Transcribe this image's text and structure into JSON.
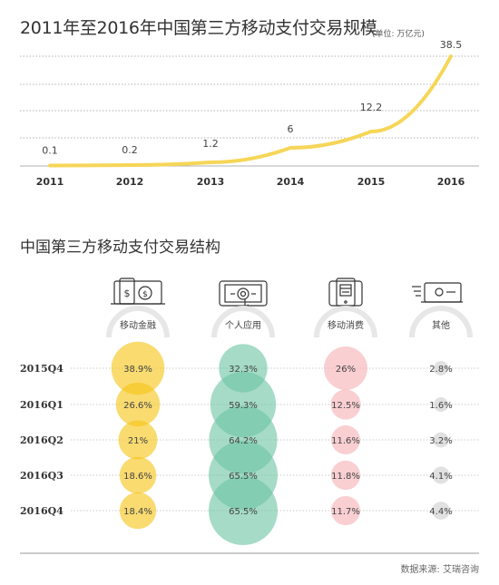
{
  "title_line": "2011年至2016年中国第三方移动支付交易规模",
  "unit_line": "(单位: 万亿元)",
  "title_structure": "中国第三方移动支付交易结构",
  "source": "数据来源: 艾瑞咨询",
  "colors": {
    "line": "#f6d658",
    "gold": "#f5c518",
    "teal": "#6ec5a5",
    "pink": "#f6b1b6",
    "gray": "#cfcfcf",
    "arc": "#e7e7e7",
    "grid": "#999999"
  },
  "chart_data": [
    {
      "type": "line",
      "title": "2011年至2016年中国第三方移动支付交易规模",
      "unit": "(单位: 万亿元)",
      "categories": [
        "2011",
        "2012",
        "2013",
        "2014",
        "2015",
        "2016"
      ],
      "series": [
        {
          "values": [
            0.1,
            0.2,
            1.2,
            6,
            12.2,
            38.5
          ],
          "labels": [
            "0.1",
            "0.2",
            "1.2",
            "6",
            "12.2",
            "38.5"
          ]
        }
      ],
      "gridlines": true
    },
    {
      "type": "bubble",
      "title": "中国第三方移动支付交易结构",
      "rows": [
        "2015Q4",
        "2016Q1",
        "2016Q2",
        "2016Q3",
        "2016Q4"
      ],
      "columns": [
        {
          "name": "移动金融",
          "icon": "mobile-finance-icon",
          "color": "gold",
          "values": [
            38.9,
            26.6,
            21,
            18.6,
            18.4
          ],
          "labels": [
            "38.9%",
            "26.6%",
            "21%",
            "18.6%",
            "18.4%"
          ]
        },
        {
          "name": "个人应用",
          "icon": "personal-app-icon",
          "color": "teal",
          "values": [
            32.3,
            59.3,
            64.2,
            65.5,
            65.5
          ],
          "labels": [
            "32.3%",
            "59.3%",
            "64.2%",
            "65.5%",
            "65.5%"
          ]
        },
        {
          "name": "移动消费",
          "icon": "mobile-consumption-icon",
          "color": "pink",
          "values": [
            26,
            12.5,
            11.6,
            11.8,
            11.7
          ],
          "labels": [
            "26%",
            "12.5%",
            "11.6%",
            "11.8%",
            "11.7%"
          ]
        },
        {
          "name": "其他",
          "icon": "money-transfer-icon",
          "color": "gray",
          "values": [
            2.8,
            1.6,
            3.2,
            4.1,
            4.4
          ],
          "labels": [
            "2.8%",
            "1.6%",
            "3.2%",
            "4.1%",
            "4.4%"
          ]
        }
      ]
    }
  ]
}
